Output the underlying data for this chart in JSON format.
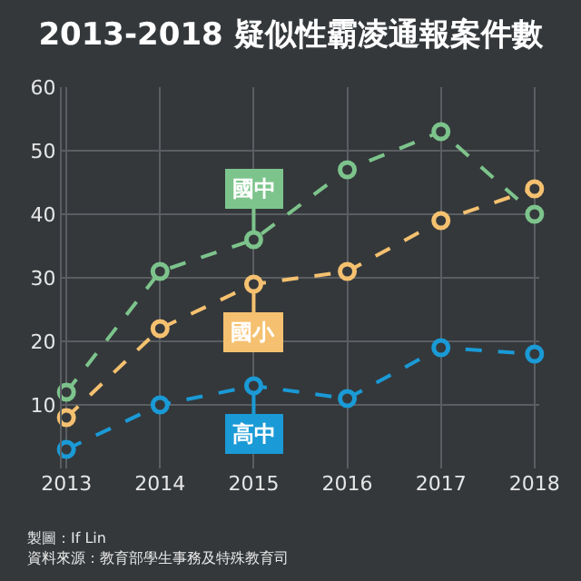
{
  "chart_data": {
    "type": "line",
    "title": "2013-2018 疑似性霸凌通報案件數",
    "categories": [
      "2013",
      "2014",
      "2015",
      "2016",
      "2017",
      "2018"
    ],
    "series": [
      {
        "name": "國中",
        "color": "#7dc48c",
        "values": [
          12,
          31,
          36,
          47,
          53,
          40
        ]
      },
      {
        "name": "國小",
        "color": "#f5c170",
        "values": [
          8,
          22,
          29,
          31,
          39,
          44
        ]
      },
      {
        "name": "高中",
        "color": "#1a9ad6",
        "values": [
          3,
          10,
          13,
          11,
          19,
          18
        ]
      }
    ],
    "ylim": [
      0,
      60
    ],
    "yticks": [
      10,
      20,
      30,
      40,
      50,
      60
    ],
    "grid": true,
    "legend": "center",
    "marker": "circle",
    "line_style": "dashed",
    "annotations": [
      "製圖：If Lin",
      "資料來源：教育部學生事務及特殊教育司"
    ]
  }
}
